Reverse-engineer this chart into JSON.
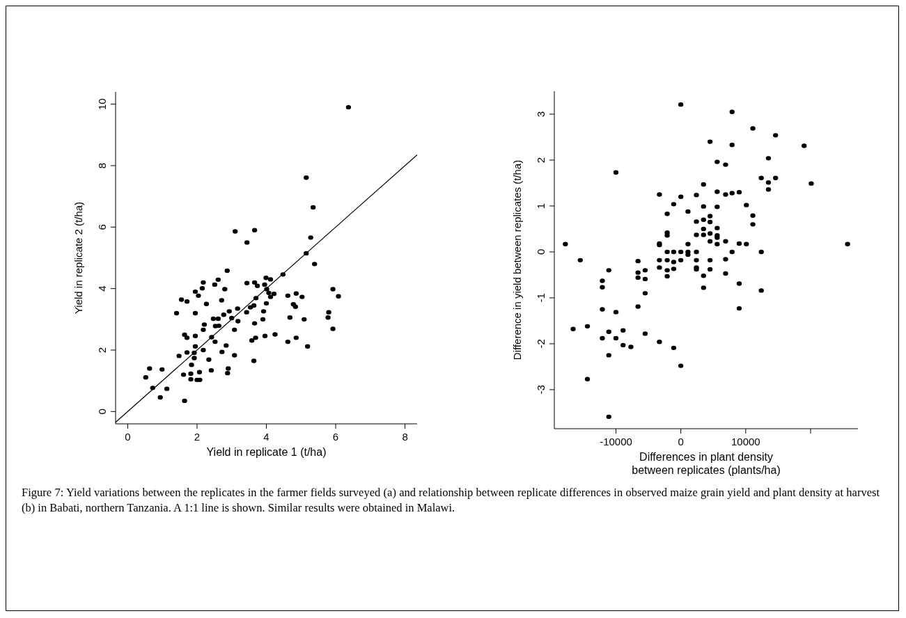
{
  "chart_data": [
    {
      "type": "scatter",
      "xlabel": "Yield in replicate 1 (t/ha)",
      "ylabel": "Yield in replicate 2 (t/ha)",
      "xlim": [
        -0.35,
        8.35
      ],
      "ylim": [
        -0.4,
        10.4
      ],
      "xticks": [
        0,
        2,
        4,
        6,
        8
      ],
      "yticks": [
        0,
        2,
        4,
        6,
        8,
        10
      ],
      "marker": "circle",
      "annotations": [
        "Figure 7: Yield variations between the replicates in the farmer fields surveyed (a) and relationship between replicate differences in observed maize grain yield and plant density at harvest (b) in Babati, northern Tanzania. A 1:1 line is shown. Similar results were obtained in Malawi."
      ],
      "series": [
        {
          "color": "#000000",
          "x": [
            6.37,
            5.15,
            5.35,
            3.1,
            3.66,
            3.44,
            5.28,
            5.15,
            5.39,
            2.87,
            4.48,
            2.18,
            2.61,
            2.51,
            2.15,
            2.8,
            3.44,
            3.66,
            3.74,
            3.99,
            4.12,
            3.95,
            4.01,
            4.07,
            4.22,
            4.12,
            1.95,
            2.04,
            1.55,
            1.71,
            2.71,
            2.27,
            3.7,
            4.0,
            4.62,
            4.86,
            5.03,
            4.78,
            4.84,
            5.92,
            6.08,
            1.41,
            1.95,
            3.17,
            2.93,
            2.77,
            3.54,
            3.64,
            3.43,
            3.92,
            2.47,
            2.61,
            3.0,
            3.18,
            3.9,
            4.68,
            5.09,
            5.8,
            5.78,
            2.21,
            2.18,
            2.53,
            2.63,
            3.08,
            3.66,
            5.92,
            1.64,
            1.71,
            1.95,
            2.42,
            2.52,
            1.95,
            2.84,
            3.58,
            3.69,
            3.96,
            4.25,
            4.62,
            4.86,
            5.19,
            1.48,
            1.71,
            1.92,
            2.18,
            2.72,
            1.92,
            2.34,
            3.08,
            3.64,
            1.84,
            0.63,
            0.99,
            0.52,
            1.61,
            1.82,
            1.82,
            2.0,
            2.08,
            2.07,
            2.41,
            2.9,
            2.88,
            0.72,
            1.13,
            0.94,
            1.64
          ],
          "values": [
            9.9,
            7.61,
            6.64,
            5.86,
            5.9,
            5.5,
            5.66,
            5.15,
            4.8,
            4.58,
            4.46,
            4.2,
            4.29,
            4.13,
            4.01,
            3.98,
            4.18,
            4.2,
            4.09,
            4.35,
            4.3,
            4.13,
            3.98,
            3.86,
            3.83,
            3.73,
            3.9,
            3.77,
            3.64,
            3.58,
            3.62,
            3.5,
            3.69,
            3.52,
            3.77,
            3.84,
            3.73,
            3.49,
            3.41,
            3.98,
            3.75,
            3.2,
            3.2,
            3.35,
            3.26,
            3.15,
            3.39,
            3.45,
            3.23,
            3.26,
            3.02,
            3.02,
            3.04,
            2.94,
            3.0,
            3.06,
            3.0,
            3.23,
            3.06,
            2.83,
            2.66,
            2.78,
            2.79,
            2.66,
            2.87,
            2.69,
            2.5,
            2.4,
            2.46,
            2.42,
            2.27,
            2.12,
            2.15,
            2.31,
            2.4,
            2.46,
            2.51,
            2.27,
            2.4,
            2.12,
            1.81,
            1.92,
            1.91,
            2.0,
            1.94,
            1.74,
            1.69,
            1.83,
            1.65,
            1.52,
            1.4,
            1.37,
            1.11,
            1.2,
            1.23,
            1.05,
            1.03,
            1.03,
            1.28,
            1.34,
            1.4,
            1.25,
            0.77,
            0.74,
            0.46,
            0.35
          ]
        },
        {
          "type": "line",
          "marker": "none",
          "color": "#000000",
          "x": [
            -0.35,
            8.35
          ],
          "values": [
            -0.35,
            8.35
          ]
        }
      ]
    },
    {
      "type": "scatter",
      "xlabel": "Differences in plant density\nbetween replicates (plants/ha)",
      "ylabel": "Difference in yield between replicates (t/ha)",
      "xlim": [
        -19500,
        27300
      ],
      "ylim": [
        -3.85,
        3.5
      ],
      "xticks": [
        -10000,
        0,
        10000,
        {
          "value": 20000,
          "label": null
        }
      ],
      "yticks": [
        -3,
        -2,
        -1,
        0,
        1,
        2,
        3
      ],
      "marker": "circle",
      "series": [
        {
          "color": "#000000",
          "x": [
            0,
            7900,
            11100,
            14600,
            4500,
            7900,
            19000,
            13500,
            5600,
            6900,
            -10000,
            12400,
            14600,
            13500,
            20100,
            13500,
            3500,
            -3300,
            0,
            2400,
            5600,
            6900,
            7900,
            9000,
            -1100,
            10100,
            3500,
            5600,
            -2100,
            1100,
            11100,
            4500,
            2400,
            3500,
            4500,
            11100,
            3500,
            5600,
            -2100,
            -2100,
            2400,
            3500,
            4500,
            5600,
            5600,
            4500,
            6900,
            -17800,
            -3300,
            -3300,
            1100,
            5600,
            9000,
            10100,
            25700,
            -2100,
            -1100,
            0,
            1100,
            1100,
            2400,
            7900,
            12400,
            -15500,
            -6600,
            -3300,
            -2100,
            -1100,
            0,
            2400,
            4500,
            6900,
            -3300,
            -2100,
            -1100,
            2400,
            2400,
            4500,
            -11100,
            -5500,
            -6600,
            -6600,
            -5500,
            -2100,
            3500,
            6900,
            -12100,
            -12100,
            3500,
            9000,
            12400,
            -5500,
            -6600,
            -12100,
            -10000,
            9000,
            -16600,
            -14400,
            -11100,
            -8900,
            -12100,
            -10000,
            -5500,
            -3300,
            -8900,
            -7700,
            -1100,
            -11100,
            0,
            -14400,
            -11100
          ],
          "values": [
            3.21,
            3.05,
            2.69,
            2.54,
            2.4,
            2.33,
            2.31,
            2.04,
            1.96,
            1.9,
            1.73,
            1.61,
            1.61,
            1.51,
            1.49,
            1.36,
            1.47,
            1.25,
            1.2,
            1.24,
            1.31,
            1.25,
            1.28,
            1.3,
            1.04,
            1.02,
            0.99,
            0.98,
            0.83,
            0.88,
            0.79,
            0.78,
            0.66,
            0.7,
            0.65,
            0.6,
            0.5,
            0.52,
            0.42,
            0.36,
            0.37,
            0.37,
            0.4,
            0.36,
            0.31,
            0.23,
            0.23,
            0.17,
            0.18,
            0.15,
            0.17,
            0.17,
            0.18,
            0.17,
            0.17,
            0,
            0,
            0,
            0,
            -0.06,
            0,
            0,
            0,
            -0.18,
            -0.2,
            -0.18,
            -0.18,
            -0.22,
            -0.18,
            -0.18,
            -0.18,
            -0.16,
            -0.34,
            -0.4,
            -0.37,
            -0.34,
            -0.38,
            -0.38,
            -0.4,
            -0.4,
            -0.45,
            -0.56,
            -0.59,
            -0.53,
            -0.52,
            -0.47,
            -0.63,
            -0.77,
            -0.78,
            -0.69,
            -0.84,
            -0.9,
            -1.19,
            -1.25,
            -1.31,
            -1.23,
            -1.68,
            -1.62,
            -1.74,
            -1.71,
            -1.88,
            -1.88,
            -1.78,
            -1.96,
            -2.03,
            -2.07,
            -2.09,
            -2.25,
            -2.48,
            -2.77,
            -3.59
          ]
        }
      ]
    }
  ]
}
